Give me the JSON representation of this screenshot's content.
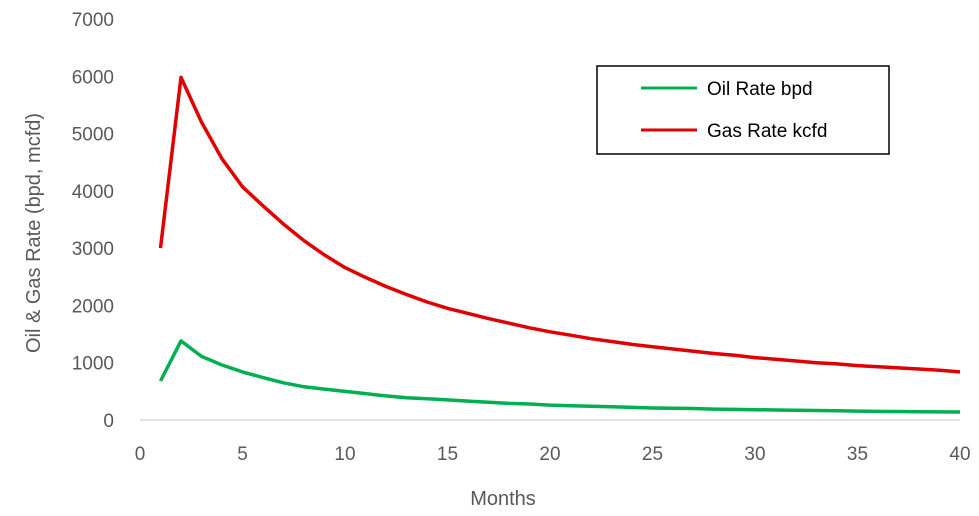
{
  "chart_data": {
    "type": "line",
    "title": "",
    "xlabel": "Months",
    "ylabel": "Oil & Gas Rate (bpd, mcfd)",
    "xlim": [
      0,
      40
    ],
    "ylim": [
      0,
      7000
    ],
    "x_ticks": [
      "0",
      "5",
      "10",
      "15",
      "20",
      "25",
      "30",
      "35",
      "40"
    ],
    "y_ticks": [
      "0",
      "1000",
      "2000",
      "3000",
      "4000",
      "5000",
      "6000",
      "7000"
    ],
    "grid": false,
    "legend_position": "top-right",
    "x": [
      1,
      2,
      3,
      4,
      5,
      6,
      7,
      8,
      9,
      10,
      11,
      12,
      13,
      14,
      15,
      16,
      17,
      18,
      19,
      20,
      21,
      22,
      23,
      24,
      25,
      26,
      27,
      28,
      29,
      30,
      31,
      32,
      33,
      34,
      35,
      36,
      37,
      38,
      39,
      40
    ],
    "series": [
      {
        "name": "Oil Rate bpd",
        "color": "#00b050",
        "values": [
          680,
          1380,
          1110,
          960,
          840,
          740,
          650,
          580,
          540,
          500,
          460,
          420,
          390,
          370,
          350,
          330,
          310,
          290,
          280,
          260,
          250,
          240,
          230,
          220,
          210,
          205,
          200,
          190,
          185,
          180,
          175,
          170,
          165,
          160,
          155,
          150,
          148,
          145,
          142,
          140
        ]
      },
      {
        "name": "Gas Rate kcfd",
        "color": "#e00000",
        "values": [
          3000,
          5980,
          5200,
          4560,
          4070,
          3740,
          3420,
          3130,
          2880,
          2660,
          2490,
          2330,
          2190,
          2060,
          1950,
          1860,
          1770,
          1690,
          1610,
          1540,
          1480,
          1420,
          1370,
          1320,
          1280,
          1240,
          1200,
          1160,
          1130,
          1090,
          1060,
          1030,
          1000,
          980,
          950,
          930,
          910,
          890,
          870,
          840
        ]
      }
    ]
  }
}
